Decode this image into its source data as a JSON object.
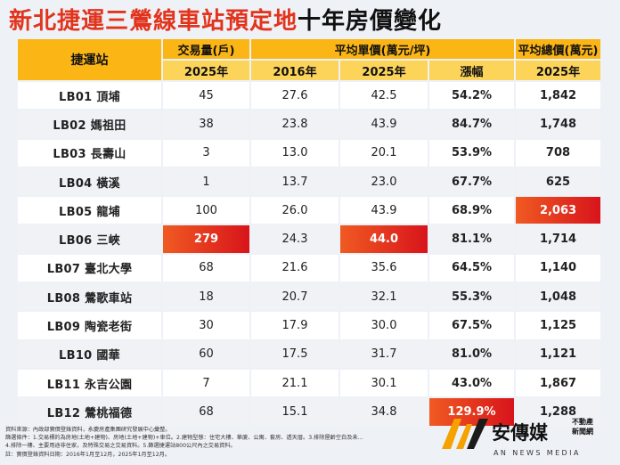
{
  "title": {
    "part1": "新北捷運三鶯線車站預定地",
    "part2": "十年房價變化"
  },
  "headers": {
    "station": "捷運站",
    "volume": "交易量(戶)",
    "unit_price": "平均單價(萬元/坪)",
    "total_price": "平均總價(萬元)",
    "volume_year": "2025年",
    "unit_year1": "2016年",
    "unit_year2": "2025年",
    "growth": "漲幅",
    "total_year": "2025年"
  },
  "rows": [
    {
      "station": "LB01 頂埔",
      "volume": "45",
      "p2016": "27.6",
      "p2025": "42.5",
      "growth": "54.2%",
      "total": "1,842"
    },
    {
      "station": "LB02 媽祖田",
      "volume": "38",
      "p2016": "23.8",
      "p2025": "43.9",
      "growth": "84.7%",
      "total": "1,748"
    },
    {
      "station": "LB03 長壽山",
      "volume": "3",
      "p2016": "13.0",
      "p2025": "20.1",
      "growth": "53.9%",
      "total": "708"
    },
    {
      "station": "LB04 橫溪",
      "volume": "1",
      "p2016": "13.7",
      "p2025": "23.0",
      "growth": "67.7%",
      "total": "625"
    },
    {
      "station": "LB05 龍埔",
      "volume": "100",
      "p2016": "26.0",
      "p2025": "43.9",
      "growth": "68.9%",
      "total": "2,063"
    },
    {
      "station": "LB06 三峽",
      "volume": "279",
      "p2016": "24.3",
      "p2025": "44.0",
      "growth": "81.1%",
      "total": "1,714"
    },
    {
      "station": "LB07 臺北大學",
      "volume": "68",
      "p2016": "21.6",
      "p2025": "35.6",
      "growth": "64.5%",
      "total": "1,140"
    },
    {
      "station": "LB08 鶯歌車站",
      "volume": "18",
      "p2016": "20.7",
      "p2025": "32.1",
      "growth": "55.3%",
      "total": "1,048"
    },
    {
      "station": "LB09 陶瓷老街",
      "volume": "30",
      "p2016": "17.9",
      "p2025": "30.0",
      "growth": "67.5%",
      "total": "1,125"
    },
    {
      "station": "LB10 國華",
      "volume": "60",
      "p2016": "17.5",
      "p2025": "31.7",
      "growth": "81.0%",
      "total": "1,121"
    },
    {
      "station": "LB11 永吉公園",
      "volume": "7",
      "p2016": "21.1",
      "p2025": "30.1",
      "growth": "43.0%",
      "total": "1,867"
    },
    {
      "station": "LB12 鶯桃福德",
      "volume": "68",
      "p2016": "15.1",
      "p2025": "34.8",
      "growth": "129.9%",
      "total": "1,288"
    }
  ],
  "highlight_color": "#e0261b",
  "notes": {
    "line1": "資料來源：內政部實價登錄資料，永慶房產集團研究發展中心彙整。",
    "line2": "篩選條件：1.交易標的為房地(土地+建物)、房地(土地+建物)+車位。2.建物型態：住宅大樓、華廈、公寓、套房、透天厝。3.排除屋齡空白及未…",
    "line3": "4.排除一樓、主要用途非住家，及特殊交易之交易資料。5.篩選捷運站800公尺內之交易資料。",
    "line4": "註：實價登錄資料日期：2016年1月至12月，2025年1月至12月。"
  },
  "logo": {
    "name": "安傳媒",
    "tag1": "不動產",
    "tag2": "新聞網",
    "en": "AN NEWS MEDIA"
  }
}
